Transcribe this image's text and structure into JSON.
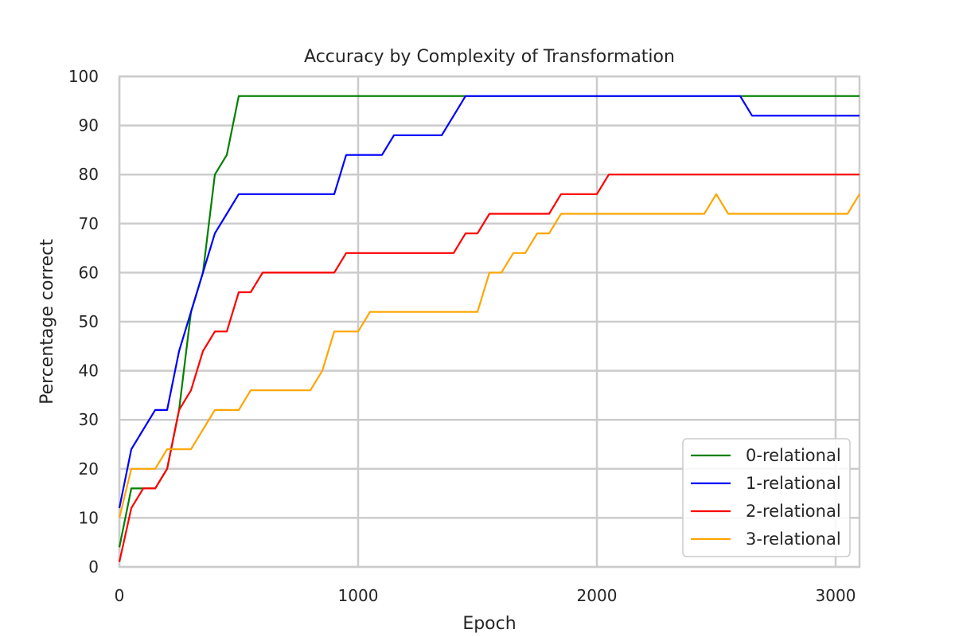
{
  "chart_data": {
    "type": "line",
    "title": "Accuracy by Complexity of Transformation",
    "xlabel": "Epoch",
    "ylabel": "Percentage correct",
    "xlim": [
      0,
      3100
    ],
    "ylim": [
      0,
      100
    ],
    "xticks": [
      0,
      1000,
      2000,
      3000
    ],
    "yticks": [
      0,
      10,
      20,
      30,
      40,
      50,
      60,
      70,
      80,
      90,
      100
    ],
    "grid": true,
    "legend_position": "lower-right",
    "series": [
      {
        "name": "0-relational",
        "color": "#008000",
        "x": [
          0,
          50,
          100,
          150,
          200,
          250,
          300,
          350,
          400,
          450,
          500,
          550,
          600,
          1000,
          1500,
          2000,
          2500,
          3000,
          3100
        ],
        "y": [
          4,
          16,
          16,
          16,
          20,
          32,
          52,
          60,
          80,
          84,
          96,
          96,
          96,
          96,
          96,
          96,
          96,
          96,
          96
        ]
      },
      {
        "name": "1-relational",
        "color": "#0000ff",
        "x": [
          0,
          50,
          100,
          150,
          200,
          250,
          300,
          350,
          400,
          450,
          500,
          550,
          600,
          650,
          700,
          750,
          800,
          850,
          900,
          950,
          1000,
          1050,
          1100,
          1150,
          1200,
          1250,
          1300,
          1350,
          1400,
          1450,
          1500,
          1550,
          1600,
          2000,
          2500,
          2600,
          2650,
          2700,
          3000,
          3100
        ],
        "y": [
          12,
          24,
          28,
          32,
          32,
          44,
          52,
          60,
          68,
          72,
          76,
          76,
          76,
          76,
          76,
          76,
          76,
          76,
          76,
          84,
          84,
          84,
          84,
          88,
          88,
          88,
          88,
          88,
          92,
          96,
          96,
          96,
          96,
          96,
          96,
          96,
          92,
          92,
          92,
          92
        ]
      },
      {
        "name": "2-relational",
        "color": "#ff0000",
        "x": [
          0,
          50,
          100,
          150,
          200,
          250,
          300,
          350,
          400,
          450,
          500,
          550,
          600,
          650,
          700,
          750,
          800,
          850,
          900,
          950,
          1000,
          1050,
          1100,
          1150,
          1200,
          1250,
          1300,
          1350,
          1400,
          1450,
          1500,
          1550,
          1600,
          1650,
          1700,
          1750,
          1800,
          1850,
          1900,
          1950,
          2000,
          2050,
          2100,
          2500,
          3000,
          3100
        ],
        "y": [
          1,
          12,
          16,
          16,
          20,
          32,
          36,
          44,
          48,
          48,
          56,
          56,
          60,
          60,
          60,
          60,
          60,
          60,
          60,
          64,
          64,
          64,
          64,
          64,
          64,
          64,
          64,
          64,
          64,
          68,
          68,
          72,
          72,
          72,
          72,
          72,
          72,
          76,
          76,
          76,
          76,
          80,
          80,
          80,
          80,
          80
        ]
      },
      {
        "name": "3-relational",
        "color": "#ffa500",
        "x": [
          0,
          50,
          100,
          150,
          200,
          250,
          300,
          350,
          400,
          450,
          500,
          550,
          600,
          650,
          700,
          750,
          800,
          850,
          900,
          950,
          1000,
          1050,
          1100,
          1150,
          1200,
          1250,
          1300,
          1350,
          1400,
          1450,
          1500,
          1550,
          1600,
          1650,
          1700,
          1750,
          1800,
          1850,
          1900,
          1950,
          2000,
          2450,
          2500,
          2550,
          2600,
          3000,
          3050,
          3100
        ],
        "y": [
          10,
          20,
          20,
          20,
          24,
          24,
          24,
          28,
          32,
          32,
          32,
          36,
          36,
          36,
          36,
          36,
          36,
          40,
          48,
          48,
          48,
          52,
          52,
          52,
          52,
          52,
          52,
          52,
          52,
          52,
          52,
          60,
          60,
          64,
          64,
          68,
          68,
          72,
          72,
          72,
          72,
          72,
          76,
          72,
          72,
          72,
          72,
          76
        ]
      }
    ]
  }
}
